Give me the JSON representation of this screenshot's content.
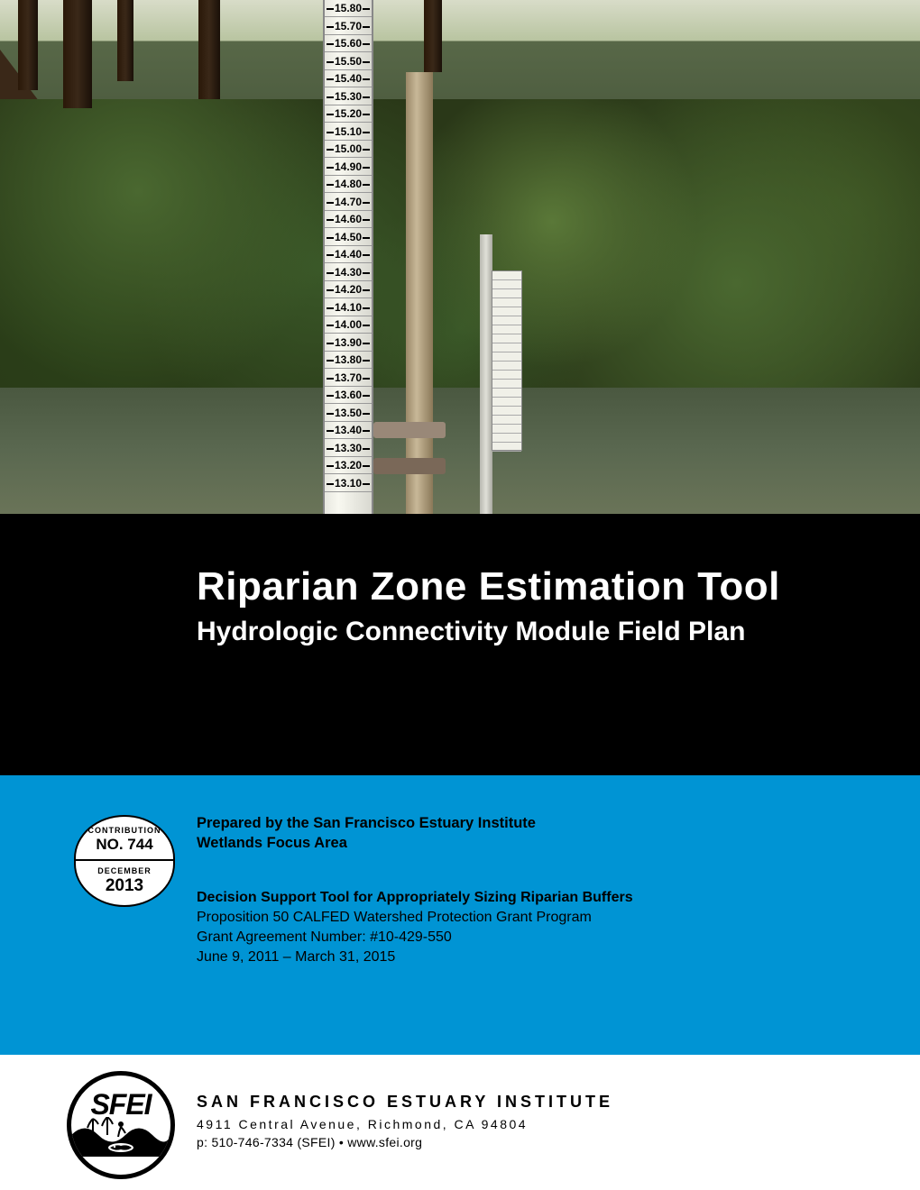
{
  "hero": {
    "gauge_start": 15.8,
    "gauge_end": 13.1,
    "gauge_step": 0.1
  },
  "title": {
    "main": "Riparian Zone Estimation Tool",
    "sub": "Hydrologic Connectivity Module Field Plan"
  },
  "badge": {
    "contribution_label": "CONTRIBUTION",
    "number": "NO. 744",
    "month": "DECEMBER",
    "year": "2013"
  },
  "prepared": {
    "line1": "Prepared by the San Francisco Estuary Institute",
    "line2": "Wetlands Focus Area"
  },
  "details": {
    "line1": "Decision Support Tool for Appropriately Sizing Riparian Buffers",
    "line2": "Proposition 50 CALFED Watershed Protection Grant Program",
    "line3": "Grant Agreement Number: #10-429-550",
    "line4": "June 9, 2011 – March 31, 2015"
  },
  "footer": {
    "org": "SAN FRANCISCO ESTUARY INSTITUTE",
    "address": "4911 Central Avenue, Richmond, CA 94804",
    "contact": "p: 510-746-7334 (SFEI)  •  www.sfei.org",
    "logo_text": "SFEI"
  },
  "colors": {
    "black": "#000000",
    "blue": "#0094d4",
    "white": "#ffffff"
  }
}
